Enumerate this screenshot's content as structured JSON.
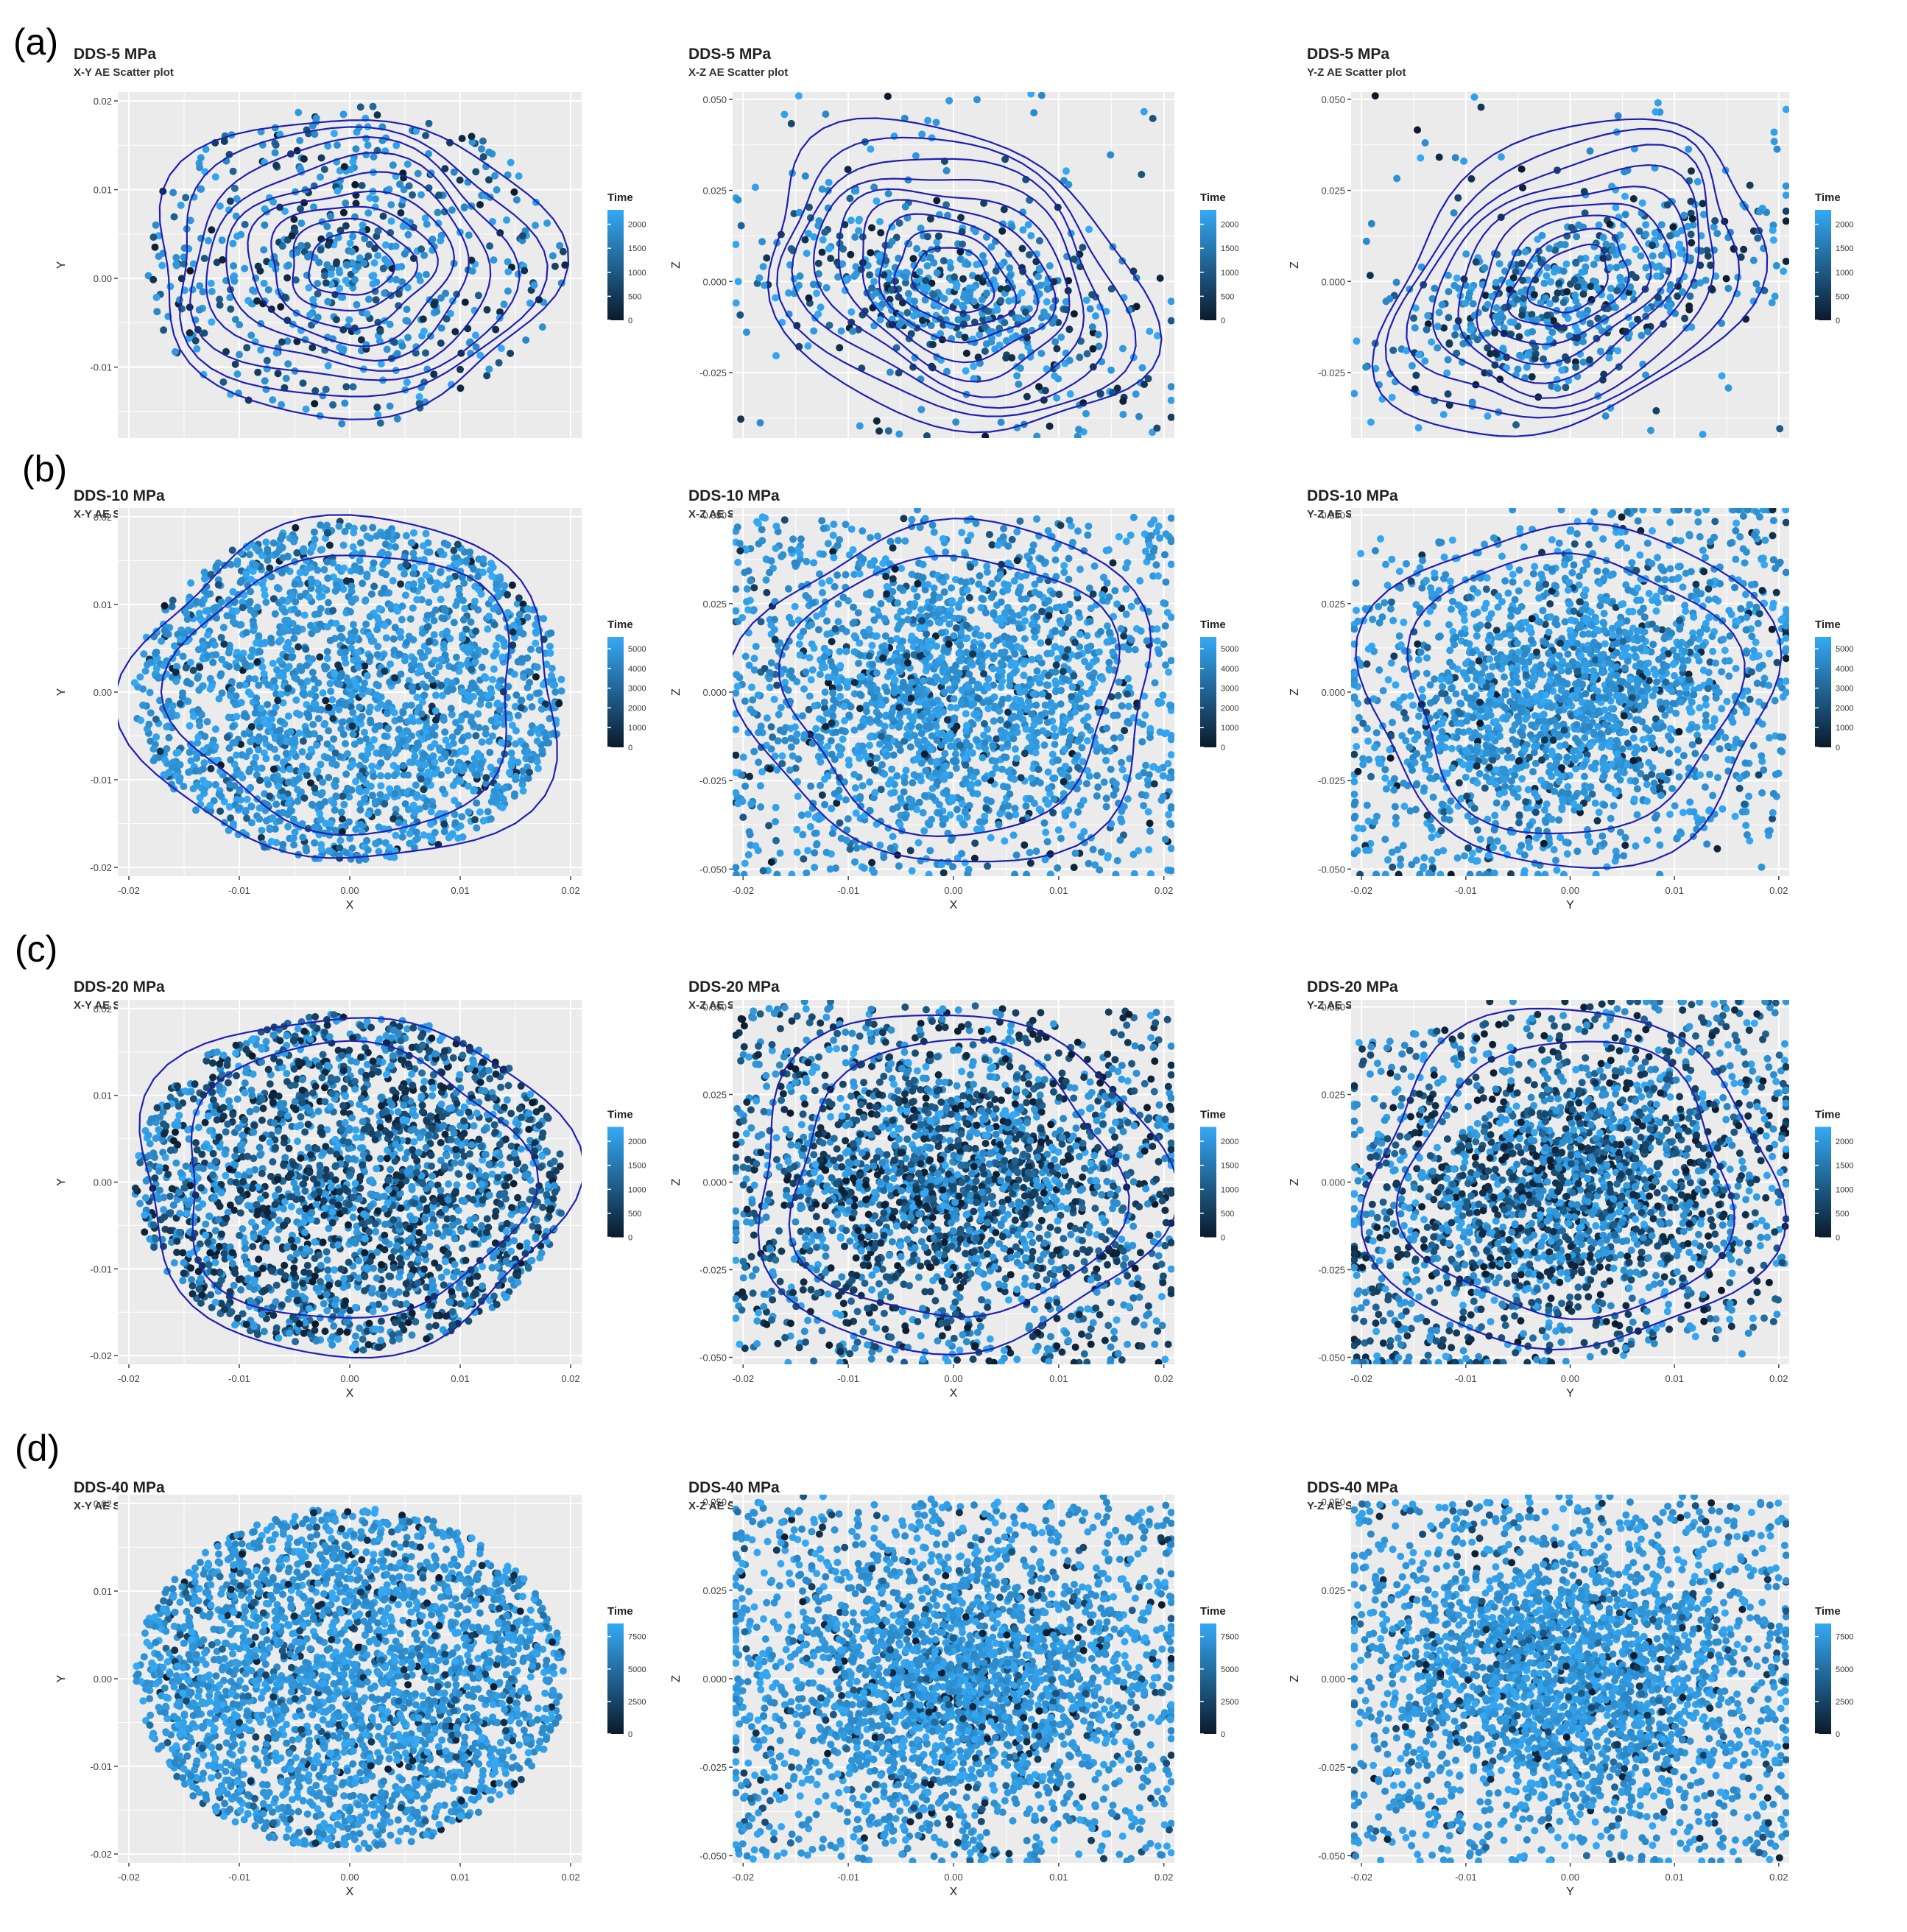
{
  "figure": {
    "row_labels": [
      "(a)",
      "(b)",
      "(c)",
      "(d)"
    ],
    "colors": {
      "panel_bg": "#ebebeb",
      "grid": "#ffffff",
      "contour": "#1f1fb4",
      "time_low": "#0b1a2c",
      "time_high": "#35a9f5"
    }
  },
  "chart_data": [
    {
      "type": "scatter",
      "row": "(a)",
      "title": "DDS-5 MPa",
      "subtitle": "X-Y AE Scatter plot",
      "xlabel": "",
      "ylabel": "Y",
      "xlim": [
        -0.021,
        0.021
      ],
      "ylim": [
        -0.018,
        0.021
      ],
      "xticks": [],
      "yticks": [
        "-0.01",
        "0.00",
        "0.01",
        "0.02"
      ],
      "legend_title": "Time",
      "legend_ticks": [
        "2000",
        "1500",
        "1000",
        "500",
        "0"
      ],
      "time_range": [
        0,
        2300
      ],
      "n_points": 650,
      "shape": "circle",
      "contours": true,
      "grid": true,
      "legend": "right"
    },
    {
      "type": "scatter",
      "row": "(a)",
      "title": "DDS-5 MPa",
      "subtitle": "X-Z AE Scatter plot",
      "xlabel": "",
      "ylabel": "Z",
      "xlim": [
        -0.021,
        0.021
      ],
      "ylim": [
        -0.043,
        0.052
      ],
      "xticks": [],
      "yticks": [
        "-0.025",
        "0.000",
        "0.025",
        "0.050"
      ],
      "legend_title": "Time",
      "legend_ticks": [
        "2000",
        "1500",
        "1000",
        "500",
        "0"
      ],
      "time_range": [
        0,
        2300
      ],
      "n_points": 650,
      "shape": "tilted",
      "contours": true,
      "grid": true,
      "legend": "right"
    },
    {
      "type": "scatter",
      "row": "(a)",
      "title": "DDS-5 MPa",
      "subtitle": "Y-Z AE Scatter plot",
      "xlabel": "",
      "ylabel": "Z",
      "xlim": [
        -0.021,
        0.021
      ],
      "ylim": [
        -0.043,
        0.052
      ],
      "xticks": [],
      "yticks": [
        "-0.025",
        "0.000",
        "0.025",
        "0.050"
      ],
      "legend_title": "Time",
      "legend_ticks": [
        "2000",
        "1500",
        "1000",
        "500",
        "0"
      ],
      "time_range": [
        0,
        2300
      ],
      "n_points": 650,
      "shape": "tilted-up",
      "contours": true,
      "grid": true,
      "legend": "right"
    },
    {
      "type": "scatter",
      "row": "(b)",
      "title": "DDS-10 MPa",
      "subtitle": "X-Y AE Scatter plot",
      "xlabel": "X",
      "ylabel": "Y",
      "xlim": [
        -0.021,
        0.021
      ],
      "ylim": [
        -0.021,
        0.021
      ],
      "xticks": [
        "-0.02",
        "-0.01",
        "0.00",
        "0.01",
        "0.02"
      ],
      "yticks": [
        "-0.02",
        "-0.01",
        "0.00",
        "0.01",
        "0.02"
      ],
      "legend_title": "Time",
      "legend_ticks": [
        "5000",
        "4000",
        "3000",
        "2000",
        "1000",
        "0"
      ],
      "time_range": [
        0,
        5600
      ],
      "n_points": 2200,
      "shape": "circle",
      "contours": true,
      "grid": true,
      "legend": "right"
    },
    {
      "type": "scatter",
      "row": "(b)",
      "title": "DDS-10 MPa",
      "subtitle": "X-Z AE Scatter plot",
      "xlabel": "X",
      "ylabel": "Z",
      "xlim": [
        -0.021,
        0.021
      ],
      "ylim": [
        -0.052,
        0.052
      ],
      "xticks": [
        "-0.02",
        "-0.01",
        "0.00",
        "0.01",
        "0.02"
      ],
      "yticks": [
        "-0.050",
        "-0.025",
        "0.000",
        "0.025",
        "0.050"
      ],
      "legend_title": "Time",
      "legend_ticks": [
        "5000",
        "4000",
        "3000",
        "2000",
        "1000",
        "0"
      ],
      "time_range": [
        0,
        5600
      ],
      "n_points": 2200,
      "shape": "rect",
      "contours": true,
      "grid": true,
      "legend": "right"
    },
    {
      "type": "scatter",
      "row": "(b)",
      "title": "DDS-10 MPa",
      "subtitle": "Y-Z AE Scatter plot",
      "xlabel": "Y",
      "ylabel": "Z",
      "xlim": [
        -0.021,
        0.021
      ],
      "ylim": [
        -0.052,
        0.052
      ],
      "xticks": [
        "-0.02",
        "-0.01",
        "0.00",
        "0.01",
        "0.02"
      ],
      "yticks": [
        "-0.050",
        "-0.025",
        "0.000",
        "0.025",
        "0.050"
      ],
      "legend_title": "Time",
      "legend_ticks": [
        "5000",
        "4000",
        "3000",
        "2000",
        "1000",
        "0"
      ],
      "time_range": [
        0,
        5600
      ],
      "n_points": 2200,
      "shape": "rect-up",
      "contours": true,
      "grid": true,
      "legend": "right"
    },
    {
      "type": "scatter",
      "row": "(c)",
      "title": "DDS-20 MPa",
      "subtitle": "X-Y AE Scatter plot",
      "xlabel": "X",
      "ylabel": "Y",
      "xlim": [
        -0.021,
        0.021
      ],
      "ylim": [
        -0.021,
        0.021
      ],
      "xticks": [
        "-0.02",
        "-0.01",
        "0.00",
        "0.01",
        "0.02"
      ],
      "yticks": [
        "-0.02",
        "-0.01",
        "0.00",
        "0.01",
        "0.02"
      ],
      "legend_title": "Time",
      "legend_ticks": [
        "2000",
        "1500",
        "1000",
        "500",
        "0"
      ],
      "time_range": [
        0,
        2300
      ],
      "n_points": 2400,
      "shape": "circle",
      "contours": true,
      "grid": true,
      "legend": "right"
    },
    {
      "type": "scatter",
      "row": "(c)",
      "title": "DDS-20 MPa",
      "subtitle": "X-Z AE Scatter plot",
      "xlabel": "X",
      "ylabel": "Z",
      "xlim": [
        -0.021,
        0.021
      ],
      "ylim": [
        -0.052,
        0.052
      ],
      "xticks": [
        "-0.02",
        "-0.01",
        "0.00",
        "0.01",
        "0.02"
      ],
      "yticks": [
        "-0.050",
        "-0.025",
        "0.000",
        "0.025",
        "0.050"
      ],
      "legend_title": "Time",
      "legend_ticks": [
        "2000",
        "1500",
        "1000",
        "500",
        "0"
      ],
      "time_range": [
        0,
        2300
      ],
      "n_points": 2400,
      "shape": "rect",
      "contours": true,
      "grid": true,
      "legend": "right"
    },
    {
      "type": "scatter",
      "row": "(c)",
      "title": "DDS-20 MPa",
      "subtitle": "Y-Z AE Scatter plot",
      "xlabel": "Y",
      "ylabel": "Z",
      "xlim": [
        -0.021,
        0.021
      ],
      "ylim": [
        -0.052,
        0.052
      ],
      "xticks": [
        "-0.02",
        "-0.01",
        "0.00",
        "0.01",
        "0.02"
      ],
      "yticks": [
        "-0.050",
        "-0.025",
        "0.000",
        "0.025",
        "0.050"
      ],
      "legend_title": "Time",
      "legend_ticks": [
        "2000",
        "1500",
        "1000",
        "500",
        "0"
      ],
      "time_range": [
        0,
        2300
      ],
      "n_points": 2400,
      "shape": "rect-up",
      "contours": true,
      "grid": true,
      "legend": "right"
    },
    {
      "type": "scatter",
      "row": "(d)",
      "title": "DDS-40 MPa",
      "subtitle": "X-Y AE Scatter plot",
      "xlabel": "X",
      "ylabel": "Y",
      "xlim": [
        -0.021,
        0.021
      ],
      "ylim": [
        -0.021,
        0.021
      ],
      "xticks": [
        "-0.02",
        "-0.01",
        "0.00",
        "0.01",
        "0.02"
      ],
      "yticks": [
        "-0.02",
        "-0.01",
        "0.00",
        "0.01",
        "0.02"
      ],
      "legend_title": "Time",
      "legend_ticks": [
        "7500",
        "5000",
        "2500",
        "0"
      ],
      "time_range": [
        0,
        8500
      ],
      "n_points": 2800,
      "shape": "circle",
      "contours": false,
      "grid": true,
      "legend": "right"
    },
    {
      "type": "scatter",
      "row": "(d)",
      "title": "DDS-40 MPa",
      "subtitle": "X-Z AE Scatter plot",
      "xlabel": "X",
      "ylabel": "Z",
      "xlim": [
        -0.021,
        0.021
      ],
      "ylim": [
        -0.052,
        0.052
      ],
      "xticks": [
        "-0.02",
        "-0.01",
        "0.00",
        "0.01",
        "0.02"
      ],
      "yticks": [
        "-0.050",
        "-0.025",
        "0.000",
        "0.025",
        "0.050"
      ],
      "legend_title": "Time",
      "legend_ticks": [
        "7500",
        "5000",
        "2500",
        "0"
      ],
      "time_range": [
        0,
        8500
      ],
      "n_points": 2800,
      "shape": "rect",
      "contours": false,
      "grid": true,
      "legend": "right"
    },
    {
      "type": "scatter",
      "row": "(d)",
      "title": "DDS-40 MPa",
      "subtitle": "Y-Z AE Scatter plot",
      "xlabel": "Y",
      "ylabel": "Z",
      "xlim": [
        -0.021,
        0.021
      ],
      "ylim": [
        -0.052,
        0.052
      ],
      "xticks": [
        "-0.02",
        "-0.01",
        "0.00",
        "0.01",
        "0.02"
      ],
      "yticks": [
        "-0.050",
        "-0.025",
        "0.000",
        "0.025",
        "0.050"
      ],
      "legend_title": "Time",
      "legend_ticks": [
        "7500",
        "5000",
        "2500",
        "0"
      ],
      "time_range": [
        0,
        8500
      ],
      "n_points": 2800,
      "shape": "rect",
      "contours": false,
      "grid": true,
      "legend": "right"
    }
  ]
}
